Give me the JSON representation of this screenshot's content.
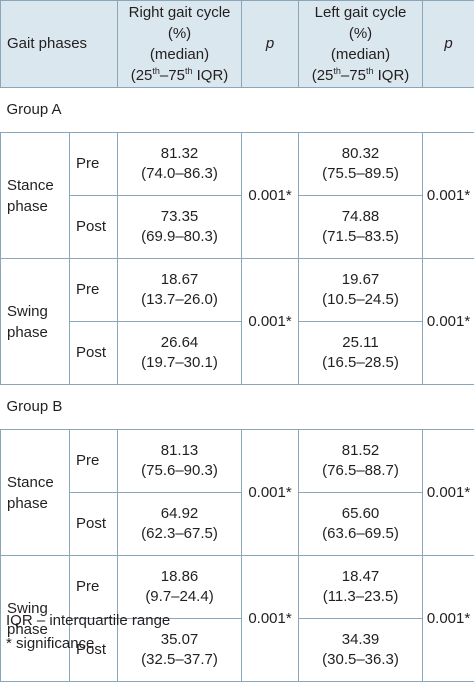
{
  "header": {
    "col1": "Gait phases",
    "right": {
      "l1": "Right gait cycle",
      "l2": "(%)",
      "l3": "(median)",
      "iqr_a": "(25",
      "iqr_b": "th",
      "iqr_c": "–75",
      "iqr_d": "th",
      "iqr_e": " IQR)"
    },
    "p": "p",
    "left": {
      "l1": "Left gait cycle",
      "l2": "(%)",
      "l3": "(median)",
      "iqr_a": "(25",
      "iqr_b": "th",
      "iqr_c": "–75",
      "iqr_d": "th",
      "iqr_e": " IQR)"
    },
    "p2": "p"
  },
  "groups": [
    {
      "name": "Group A",
      "phases": [
        {
          "l1": "Stance",
          "l2": "phase",
          "p_right": "0.001*",
          "p_left": "0.001*",
          "rows": [
            {
              "time": "Pre",
              "r_med": "81.32",
              "r_iqr": "(74.0–86.3)",
              "l_med": "80.32",
              "l_iqr": "(75.5–89.5)"
            },
            {
              "time": "Post",
              "r_med": "73.35",
              "r_iqr": "(69.9–80.3)",
              "l_med": "74.88",
              "l_iqr": "(71.5–83.5)"
            }
          ]
        },
        {
          "l1": "Swing",
          "l2": "phase",
          "p_right": "0.001*",
          "p_left": "0.001*",
          "rows": [
            {
              "time": "Pre",
              "r_med": "18.67",
              "r_iqr": "(13.7–26.0)",
              "l_med": "19.67",
              "l_iqr": "(10.5–24.5)"
            },
            {
              "time": "Post",
              "r_med": "26.64",
              "r_iqr": "(19.7–30.1)",
              "l_med": "25.11",
              "l_iqr": "(16.5–28.5)"
            }
          ]
        }
      ]
    },
    {
      "name": "Group B",
      "phases": [
        {
          "l1": "Stance",
          "l2": "phase",
          "p_right": "0.001*",
          "p_left": "0.001*",
          "rows": [
            {
              "time": "Pre",
              "r_med": "81.13",
              "r_iqr": "(75.6–90.3)",
              "l_med": "81.52",
              "l_iqr": "(76.5–88.7)"
            },
            {
              "time": "Post",
              "r_med": "64.92",
              "r_iqr": "(62.3–67.5)",
              "l_med": "65.60",
              "l_iqr": "(63.6–69.5)"
            }
          ]
        },
        {
          "l1": "Swing",
          "l2": "phase",
          "p_right": "0.001*",
          "p_left": "0.001*",
          "rows": [
            {
              "time": "Pre",
              "r_med": "18.86",
              "r_iqr": "(9.7–24.4)",
              "l_med": "18.47",
              "l_iqr": "(11.3–23.5)"
            },
            {
              "time": "Post",
              "r_med": "35.07",
              "r_iqr": "(32.5–37.7)",
              "l_med": "34.39",
              "l_iqr": "(30.5–36.3)"
            }
          ]
        }
      ]
    }
  ],
  "footnotes": {
    "iqr": "IQR – interquartile range",
    "sig": "* significance"
  }
}
